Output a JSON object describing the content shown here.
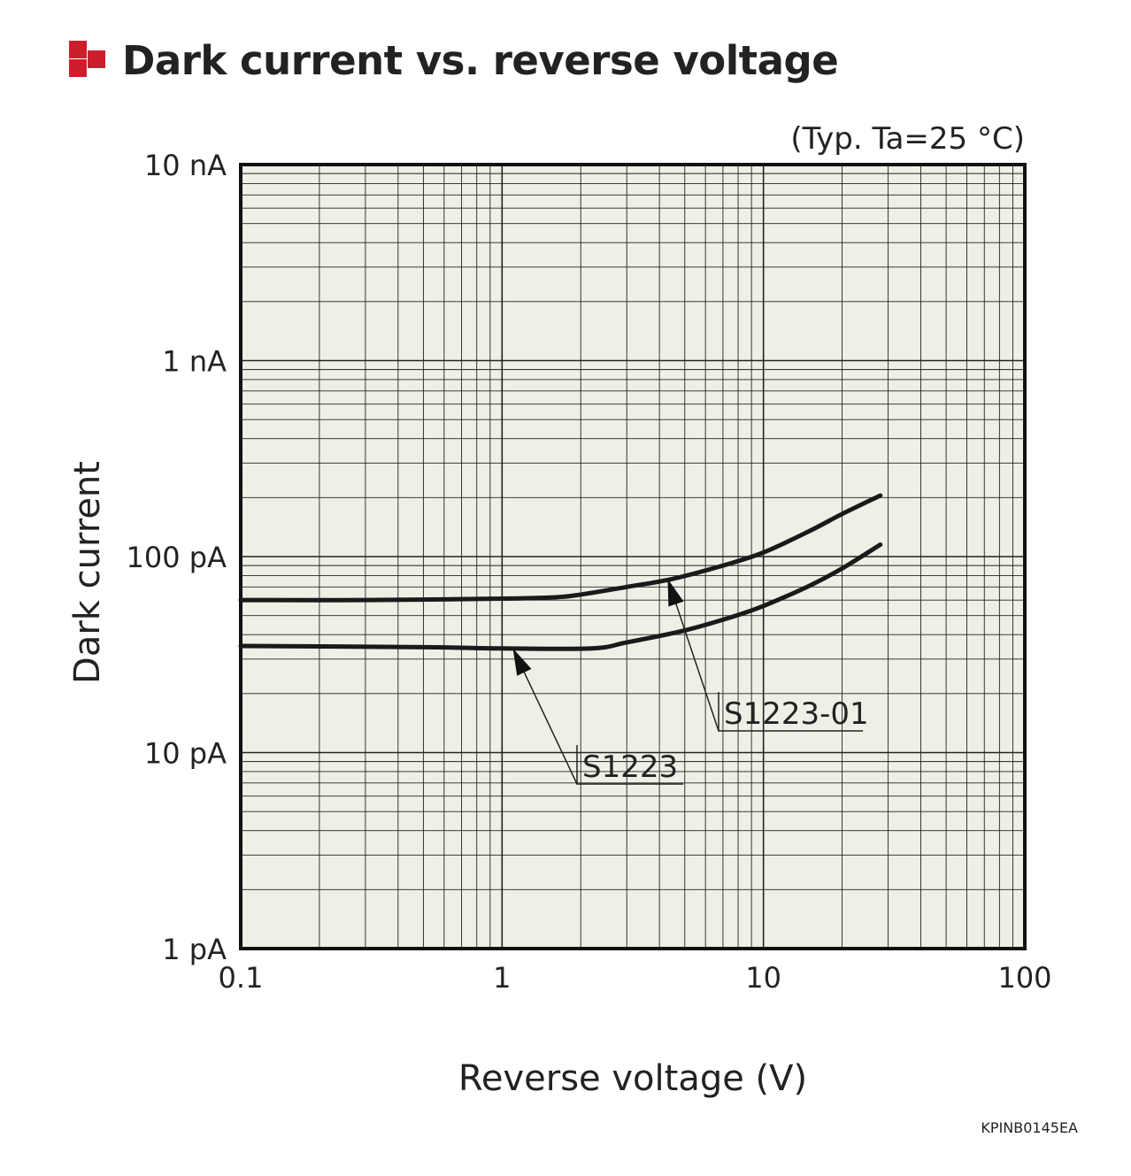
{
  "header": {
    "title": "Dark current vs. reverse voltage",
    "icon": "red-square-bullet-icon",
    "accent_color": "#cc1f2d"
  },
  "chart_data": {
    "type": "line",
    "title": "Dark current vs. reverse voltage",
    "condition_note": "(Typ. Ta=25 °C)",
    "xlabel": "Reverse voltage (V)",
    "ylabel": "Dark current",
    "x_scale": "log",
    "y_scale": "log",
    "xlim": [
      0.1,
      100
    ],
    "ylim_A": [
      1e-12,
      1e-08
    ],
    "x_ticks": [
      {
        "value": 0.1,
        "label": "0.1"
      },
      {
        "value": 1,
        "label": "1"
      },
      {
        "value": 10,
        "label": "10"
      },
      {
        "value": 100,
        "label": "100"
      }
    ],
    "y_ticks": [
      {
        "value": 1e-12,
        "label": "1 pA"
      },
      {
        "value": 1e-11,
        "label": "10 pA"
      },
      {
        "value": 1e-10,
        "label": "100 pA"
      },
      {
        "value": 1e-09,
        "label": "1 nA"
      },
      {
        "value": 1e-08,
        "label": "10 nA"
      }
    ],
    "grid": true,
    "background_color": "#f0efe6",
    "series": [
      {
        "name": "S1223-01",
        "unit": "A",
        "points": [
          [
            0.1,
            6e-11
          ],
          [
            0.3,
            6e-11
          ],
          [
            1.0,
            6.1e-11
          ],
          [
            1.6,
            6.2e-11
          ],
          [
            2.0,
            6.4e-11
          ],
          [
            3.0,
            7e-11
          ],
          [
            4.5,
            7.7e-11
          ],
          [
            7.0,
            9e-11
          ],
          [
            10.0,
            1.05e-10
          ],
          [
            15.0,
            1.35e-10
          ],
          [
            20.0,
            1.65e-10
          ],
          [
            28.0,
            2.05e-10
          ]
        ]
      },
      {
        "name": "S1223",
        "unit": "A",
        "points": [
          [
            0.1,
            3.5e-11
          ],
          [
            0.5,
            3.45e-11
          ],
          [
            1.0,
            3.4e-11
          ],
          [
            2.2,
            3.4e-11
          ],
          [
            3.0,
            3.65e-11
          ],
          [
            5.0,
            4.2e-11
          ],
          [
            7.5,
            4.9e-11
          ],
          [
            10.0,
            5.6e-11
          ],
          [
            15.0,
            7.1e-11
          ],
          [
            20.0,
            8.7e-11
          ],
          [
            28.0,
            1.15e-10
          ]
        ]
      }
    ],
    "annotations": [
      {
        "text": "S1223-01",
        "points_to_series": "S1223-01",
        "arrow_x": 4.3,
        "arrow_y": 7.7e-11
      },
      {
        "text": "S1223",
        "points_to_series": "S1223",
        "arrow_x": 1.1,
        "arrow_y": 3.4e-11
      }
    ]
  },
  "doc_code": "KPINB0145EA"
}
